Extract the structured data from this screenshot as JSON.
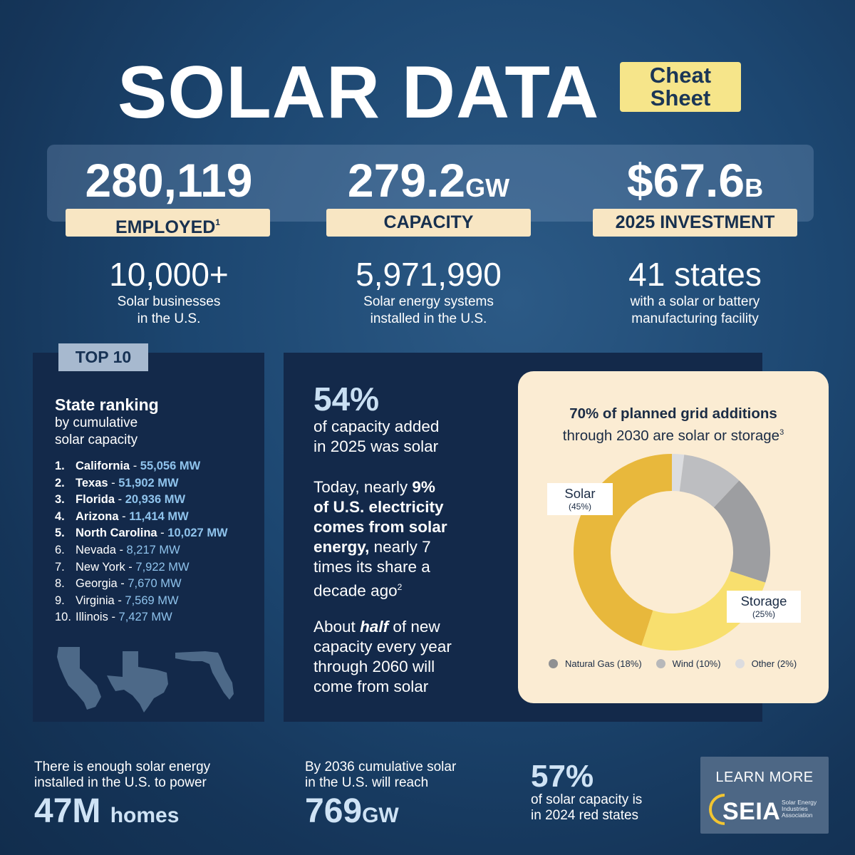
{
  "header": {
    "title": "SOLAR DATA",
    "tag_line1": "Cheat",
    "tag_line2": "Sheet"
  },
  "top_stats": [
    {
      "value": "280,119",
      "unit": "",
      "label": "EMPLOYED",
      "footnote": "1"
    },
    {
      "value": "279.2",
      "unit": "GW",
      "label": "CAPACITY",
      "footnote": ""
    },
    {
      "value": "$67.6",
      "unit": "B",
      "label": "2025 INVESTMENT",
      "footnote": ""
    }
  ],
  "secondary_stats": [
    {
      "value": "10,000+",
      "desc_line1": "Solar businesses",
      "desc_line2": "in the U.S."
    },
    {
      "value": "5,971,990",
      "desc_line1": "Solar energy systems",
      "desc_line2": "installed in the U.S."
    },
    {
      "value": "41 states",
      "desc_line1": "with a solar or battery",
      "desc_line2": "manufacturing facility"
    }
  ],
  "ranking": {
    "tag": "TOP 10",
    "title": "State ranking",
    "subtitle_line1": "by cumulative",
    "subtitle_line2": "solar capacity",
    "items": [
      {
        "idx": "1.",
        "state": "California",
        "mw": "55,056 MW"
      },
      {
        "idx": "2.",
        "state": "Texas",
        "mw": "51,902 MW"
      },
      {
        "idx": "3.",
        "state": "Florida",
        "mw": "20,936 MW"
      },
      {
        "idx": "4.",
        "state": "Arizona",
        "mw": "11,414 MW"
      },
      {
        "idx": "5.",
        "state": "North Carolina",
        "mw": "10,027 MW"
      },
      {
        "idx": "6.",
        "state": "Nevada",
        "mw": "8,217 MW"
      },
      {
        "idx": "7.",
        "state": "New York",
        "mw": "7,922 MW"
      },
      {
        "idx": "8.",
        "state": "Georgia",
        "mw": "7,670 MW"
      },
      {
        "idx": "9.",
        "state": "Virginia",
        "mw": "7,569 MW"
      },
      {
        "idx": "10.",
        "state": "Illinois",
        "mw": "7,427 MW"
      }
    ],
    "map_icons": [
      "california-map-icon",
      "texas-map-icon",
      "florida-map-icon"
    ]
  },
  "middle": {
    "pct": "54%",
    "pct_line1": "of capacity added",
    "pct_line2": "in 2025 was solar",
    "p2_a": "Today, nearly ",
    "p2_b": "9%",
    "p2_c": "of U.S. electricity",
    "p2_d": "comes from solar",
    "p2_e": "energy,",
    "p2_f": " nearly 7",
    "p2_g": "times its share a",
    "p2_h": "decade ago",
    "p2_fn": "2",
    "p3_a": "About ",
    "p3_b": "half",
    "p3_c": " of new",
    "p3_d": "capacity every year",
    "p3_e": "through 2060 will",
    "p3_f": "come from solar"
  },
  "donut": {
    "title_line1": "70% of planned grid additions",
    "title_line2": "through 2030 are solar or storage",
    "title_fn": "3",
    "solar_label": "Solar",
    "solar_pct": "(45%)",
    "storage_label": "Storage",
    "storage_pct": "(25%)",
    "legend": [
      {
        "label": "Natural Gas (18%)",
        "color": "#8f9092"
      },
      {
        "label": "Wind (10%)",
        "color": "#b7b8ba"
      },
      {
        "label": "Other (2%)",
        "color": "#dcdcdf"
      }
    ]
  },
  "chart_data": {
    "type": "pie",
    "title": "70% of planned grid additions through 2030 are solar or storage",
    "categories": [
      "Solar",
      "Storage",
      "Natural Gas",
      "Wind",
      "Other"
    ],
    "values": [
      45,
      25,
      18,
      10,
      2
    ],
    "colors": [
      "#e8b83c",
      "#f8df6e",
      "#9d9ea1",
      "#bdbec1",
      "#dcdde0"
    ]
  },
  "bottom": {
    "homes_line1": "There is enough solar energy",
    "homes_line2": "installed in the U.S. to power",
    "homes_value": "47M",
    "homes_unit": "homes",
    "reach_line1": "By 2036 cumulative solar",
    "reach_line2": "in the U.S. will reach",
    "reach_value": "769",
    "reach_unit": "GW",
    "red_pct": "57%",
    "red_line1": "of solar capacity is",
    "red_line2": "in 2024 red states",
    "learn_more": "LEARN MORE",
    "seia_word": "SEIA",
    "seia_sub1": "Solar Energy",
    "seia_sub2": "Industries",
    "seia_sub3": "Association"
  }
}
